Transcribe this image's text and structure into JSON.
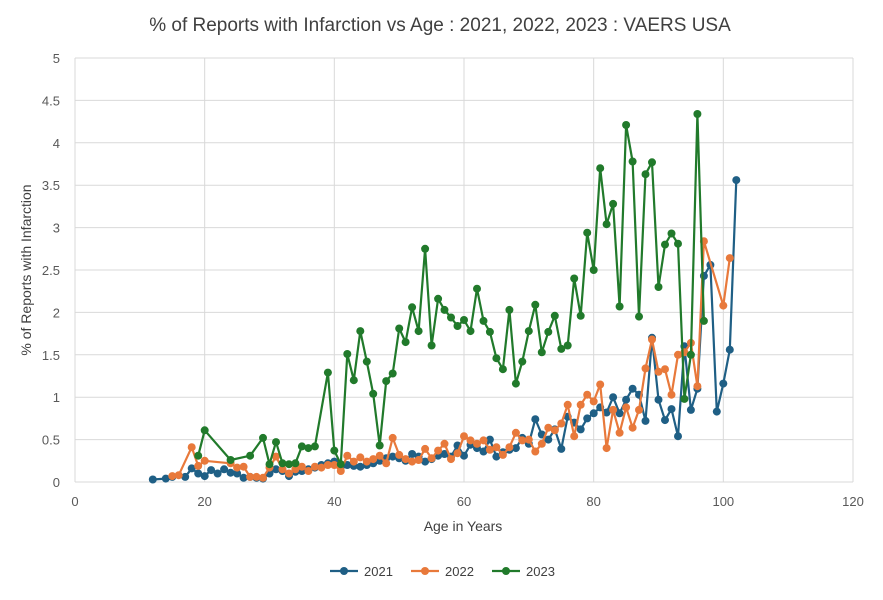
{
  "chart_data": {
    "type": "line",
    "title": "% of Reports with Infarction vs Age : 2021, 2022, 2023 : VAERS USA",
    "xlabel": "Age in Years",
    "ylabel": "% of Reports with Infarction",
    "xlim": [
      0,
      120
    ],
    "ylim": [
      0,
      5
    ],
    "x_ticks": [
      "0",
      "20",
      "40",
      "60",
      "80",
      "100",
      "120"
    ],
    "y_ticks": [
      "0",
      "0.5",
      "1",
      "1.5",
      "2",
      "2.5",
      "3",
      "3.5",
      "4",
      "4.5",
      "5"
    ],
    "grid": true,
    "legend_position": "bottom",
    "series": [
      {
        "name": "2021",
        "color": "#1f5f85",
        "points": [
          [
            12,
            0.03
          ],
          [
            14,
            0.04
          ],
          [
            15,
            0.06
          ],
          [
            17,
            0.06
          ],
          [
            18,
            0.16
          ],
          [
            19,
            0.1
          ],
          [
            20,
            0.07
          ],
          [
            21,
            0.14
          ],
          [
            22,
            0.1
          ],
          [
            23,
            0.15
          ],
          [
            24,
            0.11
          ],
          [
            25,
            0.1
          ],
          [
            26,
            0.05
          ],
          [
            27,
            0.06
          ],
          [
            28,
            0.05
          ],
          [
            29,
            0.04
          ],
          [
            30,
            0.1
          ],
          [
            31,
            0.15
          ],
          [
            32,
            0.13
          ],
          [
            33,
            0.07
          ],
          [
            34,
            0.12
          ],
          [
            35,
            0.13
          ],
          [
            36,
            0.15
          ],
          [
            37,
            0.17
          ],
          [
            38,
            0.2
          ],
          [
            39,
            0.22
          ],
          [
            40,
            0.24
          ],
          [
            41,
            0.18
          ],
          [
            42,
            0.2
          ],
          [
            43,
            0.19
          ],
          [
            44,
            0.18
          ],
          [
            45,
            0.2
          ],
          [
            46,
            0.22
          ],
          [
            47,
            0.25
          ],
          [
            48,
            0.28
          ],
          [
            49,
            0.3
          ],
          [
            50,
            0.28
          ],
          [
            51,
            0.25
          ],
          [
            52,
            0.33
          ],
          [
            53,
            0.3
          ],
          [
            54,
            0.24
          ],
          [
            55,
            0.27
          ],
          [
            56,
            0.31
          ],
          [
            57,
            0.33
          ],
          [
            58,
            0.3
          ],
          [
            59,
            0.43
          ],
          [
            60,
            0.31
          ],
          [
            61,
            0.44
          ],
          [
            62,
            0.4
          ],
          [
            63,
            0.36
          ],
          [
            64,
            0.5
          ],
          [
            65,
            0.3
          ],
          [
            66,
            0.35
          ],
          [
            67,
            0.38
          ],
          [
            68,
            0.4
          ],
          [
            69,
            0.52
          ],
          [
            70,
            0.45
          ],
          [
            71,
            0.74
          ],
          [
            72,
            0.56
          ],
          [
            73,
            0.5
          ],
          [
            74,
            0.62
          ],
          [
            75,
            0.39
          ],
          [
            76,
            0.77
          ],
          [
            77,
            0.7
          ],
          [
            78,
            0.62
          ],
          [
            79,
            0.75
          ],
          [
            80,
            0.81
          ],
          [
            81,
            0.88
          ],
          [
            82,
            0.82
          ],
          [
            83,
            1.0
          ],
          [
            84,
            0.81
          ],
          [
            85,
            0.97
          ],
          [
            86,
            1.1
          ],
          [
            87,
            1.03
          ],
          [
            88,
            0.72
          ],
          [
            89,
            1.7
          ],
          [
            90,
            0.97
          ],
          [
            91,
            0.73
          ],
          [
            92,
            0.86
          ],
          [
            93,
            0.54
          ],
          [
            94,
            1.6
          ],
          [
            95,
            0.85
          ],
          [
            96,
            1.1
          ],
          [
            97,
            2.43
          ],
          [
            98,
            2.56
          ],
          [
            99,
            0.83
          ],
          [
            100,
            1.16
          ],
          [
            101,
            1.56
          ],
          [
            102,
            3.56
          ]
        ]
      },
      {
        "name": "2022",
        "color": "#e8793b",
        "points": [
          [
            15,
            0.07
          ],
          [
            16,
            0.08
          ],
          [
            18,
            0.41
          ],
          [
            19,
            0.19
          ],
          [
            20,
            0.25
          ],
          [
            24,
            0.22
          ],
          [
            25,
            0.17
          ],
          [
            26,
            0.18
          ],
          [
            27,
            0.06
          ],
          [
            28,
            0.06
          ],
          [
            29,
            0.05
          ],
          [
            30,
            0.17
          ],
          [
            31,
            0.3
          ],
          [
            32,
            0.15
          ],
          [
            33,
            0.1
          ],
          [
            34,
            0.15
          ],
          [
            35,
            0.18
          ],
          [
            36,
            0.13
          ],
          [
            37,
            0.18
          ],
          [
            38,
            0.17
          ],
          [
            39,
            0.2
          ],
          [
            40,
            0.2
          ],
          [
            41,
            0.13
          ],
          [
            42,
            0.31
          ],
          [
            43,
            0.24
          ],
          [
            44,
            0.29
          ],
          [
            45,
            0.24
          ],
          [
            46,
            0.27
          ],
          [
            47,
            0.31
          ],
          [
            48,
            0.22
          ],
          [
            49,
            0.52
          ],
          [
            50,
            0.32
          ],
          [
            51,
            0.27
          ],
          [
            52,
            0.24
          ],
          [
            53,
            0.26
          ],
          [
            54,
            0.39
          ],
          [
            55,
            0.28
          ],
          [
            56,
            0.37
          ],
          [
            57,
            0.45
          ],
          [
            58,
            0.27
          ],
          [
            59,
            0.34
          ],
          [
            60,
            0.54
          ],
          [
            61,
            0.49
          ],
          [
            62,
            0.45
          ],
          [
            63,
            0.49
          ],
          [
            64,
            0.38
          ],
          [
            65,
            0.41
          ],
          [
            66,
            0.32
          ],
          [
            67,
            0.41
          ],
          [
            68,
            0.58
          ],
          [
            69,
            0.49
          ],
          [
            70,
            0.5
          ],
          [
            71,
            0.36
          ],
          [
            72,
            0.45
          ],
          [
            73,
            0.64
          ],
          [
            74,
            0.61
          ],
          [
            75,
            0.69
          ],
          [
            76,
            0.91
          ],
          [
            77,
            0.54
          ],
          [
            78,
            0.91
          ],
          [
            79,
            1.03
          ],
          [
            80,
            0.95
          ],
          [
            81,
            1.15
          ],
          [
            82,
            0.4
          ],
          [
            83,
            0.85
          ],
          [
            84,
            0.58
          ],
          [
            85,
            0.88
          ],
          [
            86,
            0.64
          ],
          [
            87,
            0.85
          ],
          [
            88,
            1.34
          ],
          [
            89,
            1.68
          ],
          [
            90,
            1.3
          ],
          [
            91,
            1.33
          ],
          [
            92,
            1.03
          ],
          [
            93,
            1.5
          ],
          [
            94,
            1.53
          ],
          [
            95,
            1.64
          ],
          [
            96,
            1.13
          ],
          [
            97,
            2.84
          ],
          [
            100,
            2.08
          ],
          [
            101,
            2.64
          ]
        ]
      },
      {
        "name": "2023",
        "color": "#217a2b",
        "points": [
          [
            19,
            0.31
          ],
          [
            20,
            0.61
          ],
          [
            24,
            0.26
          ],
          [
            27,
            0.31
          ],
          [
            29,
            0.52
          ],
          [
            30,
            0.21
          ],
          [
            31,
            0.47
          ],
          [
            32,
            0.22
          ],
          [
            33,
            0.21
          ],
          [
            34,
            0.22
          ],
          [
            35,
            0.42
          ],
          [
            36,
            0.4
          ],
          [
            37,
            0.42
          ],
          [
            39,
            1.29
          ],
          [
            40,
            0.37
          ],
          [
            41,
            0.21
          ],
          [
            42,
            1.51
          ],
          [
            43,
            1.2
          ],
          [
            44,
            1.78
          ],
          [
            45,
            1.42
          ],
          [
            46,
            1.04
          ],
          [
            47,
            0.43
          ],
          [
            48,
            1.19
          ],
          [
            49,
            1.28
          ],
          [
            50,
            1.81
          ],
          [
            51,
            1.65
          ],
          [
            52,
            2.06
          ],
          [
            53,
            1.78
          ],
          [
            54,
            2.75
          ],
          [
            55,
            1.61
          ],
          [
            56,
            2.16
          ],
          [
            57,
            2.03
          ],
          [
            58,
            1.94
          ],
          [
            59,
            1.84
          ],
          [
            60,
            1.91
          ],
          [
            61,
            1.78
          ],
          [
            62,
            2.28
          ],
          [
            63,
            1.9
          ],
          [
            64,
            1.77
          ],
          [
            65,
            1.46
          ],
          [
            66,
            1.33
          ],
          [
            67,
            2.03
          ],
          [
            68,
            1.16
          ],
          [
            69,
            1.42
          ],
          [
            70,
            1.78
          ],
          [
            71,
            2.09
          ],
          [
            72,
            1.53
          ],
          [
            73,
            1.77
          ],
          [
            74,
            1.96
          ],
          [
            75,
            1.57
          ],
          [
            76,
            1.61
          ],
          [
            77,
            2.4
          ],
          [
            78,
            1.96
          ],
          [
            79,
            2.94
          ],
          [
            80,
            2.5
          ],
          [
            81,
            3.7
          ],
          [
            82,
            3.04
          ],
          [
            83,
            3.28
          ],
          [
            84,
            2.07
          ],
          [
            85,
            4.21
          ],
          [
            86,
            3.78
          ],
          [
            87,
            1.95
          ],
          [
            88,
            3.63
          ],
          [
            89,
            3.77
          ],
          [
            90,
            2.3
          ],
          [
            91,
            2.8
          ],
          [
            92,
            2.93
          ],
          [
            93,
            2.81
          ],
          [
            94,
            0.98
          ],
          [
            95,
            1.5
          ],
          [
            96,
            4.34
          ],
          [
            97,
            1.9
          ]
        ]
      }
    ]
  }
}
